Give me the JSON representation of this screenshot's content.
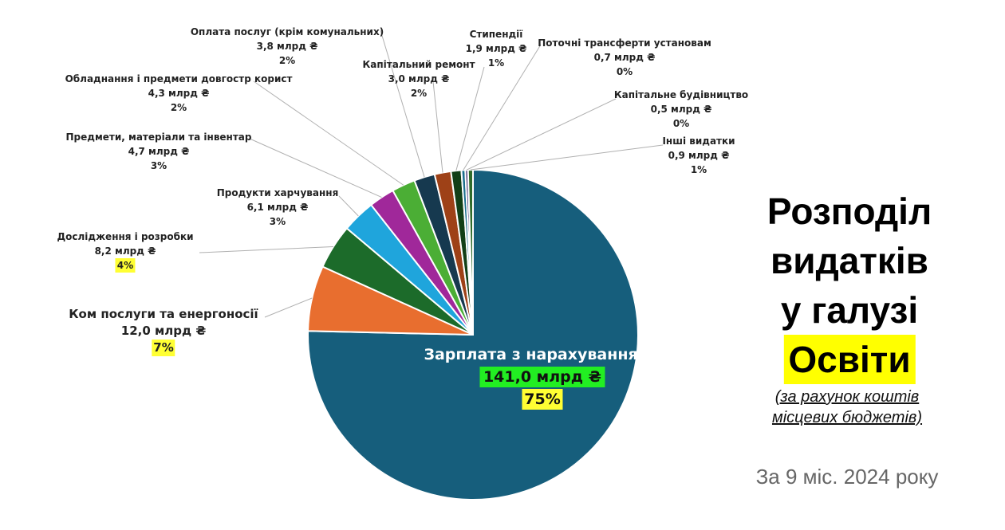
{
  "chart_data": {
    "type": "pie",
    "title": "Розподіл видатків у галузі Освіти",
    "subtitle": "(за рахунок коштів місцевих бюджетів)",
    "period": "За 9 міс. 2024 року",
    "slices": [
      {
        "label": "Зарплата з нарахуваннями",
        "value": 141.0,
        "value_text": "141,0 млрд ₴",
        "percent": "75%",
        "color": "#165E7C"
      },
      {
        "label": "Ком послуги та енергоносії",
        "value": 12.0,
        "value_text": "12,0 млрд ₴",
        "percent": "7%",
        "color": "#E86E2F"
      },
      {
        "label": "Дослідження і розробки",
        "value": 8.2,
        "value_text": "8,2 млрд ₴",
        "percent": "4%",
        "color": "#1C6B2A"
      },
      {
        "label": "Продукти харчування",
        "value": 6.1,
        "value_text": "6,1 млрд ₴",
        "percent": "3%",
        "color": "#1FA5DC"
      },
      {
        "label": "Предмети, матеріали та інвентар",
        "value": 4.7,
        "value_text": "4,7 млрд ₴",
        "percent": "3%",
        "color": "#A0289A"
      },
      {
        "label": "Обладнання і предмети довгостр корист",
        "value": 4.3,
        "value_text": "4,3 млрд ₴",
        "percent": "2%",
        "color": "#4BAE35"
      },
      {
        "label": "Оплата послуг (крім комунальних)",
        "value": 3.8,
        "value_text": "3,8 млрд ₴",
        "percent": "2%",
        "color": "#16394F"
      },
      {
        "label": "Капітальний ремонт",
        "value": 3.0,
        "value_text": "3,0 млрд ₴",
        "percent": "2%",
        "color": "#9E4117"
      },
      {
        "label": "Стипендії",
        "value": 1.9,
        "value_text": "1,9 млрд ₴",
        "percent": "1%",
        "color": "#123F17"
      },
      {
        "label": "Поточні трансферти установам",
        "value": 0.7,
        "value_text": "0,7 млрд ₴",
        "percent": "0%",
        "color": "#1A6E8E"
      },
      {
        "label": "Капітальне будівництво",
        "value": 0.5,
        "value_text": "0,5 млрд ₴",
        "percent": "0%",
        "color": "#3C2A6E"
      },
      {
        "label": "Інші видатки",
        "value": 0.9,
        "value_text": "0,9 млрд ₴",
        "percent": "1%",
        "color": "#2F6B2A"
      }
    ]
  },
  "leader_color": "#b0b0b0"
}
